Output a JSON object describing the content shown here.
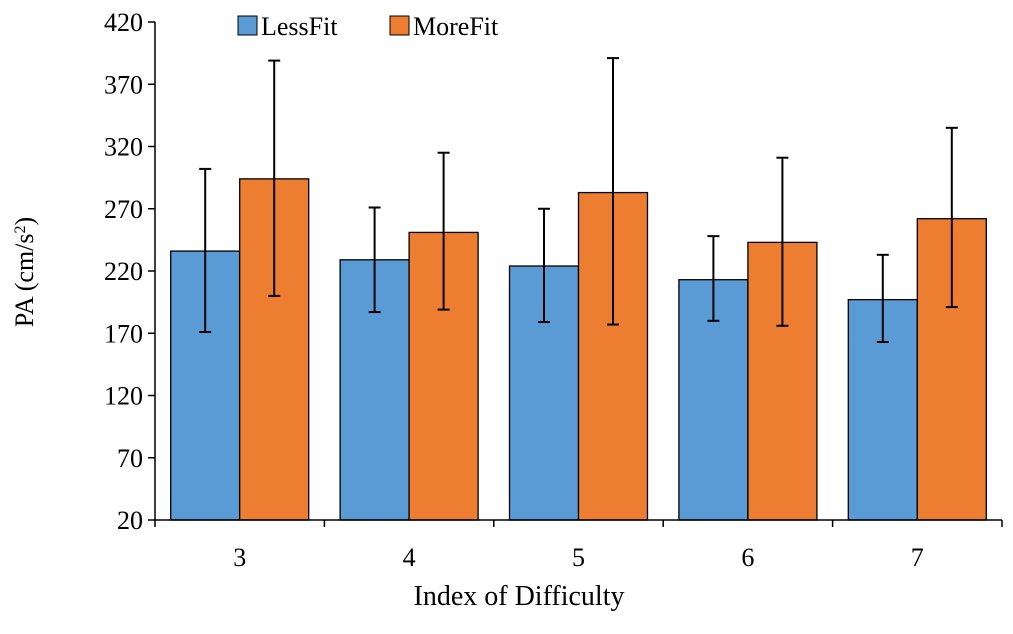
{
  "chart_data": {
    "type": "bar",
    "title": "",
    "xlabel": "Index of Difficulty",
    "ylabel": "PA (cm/s",
    "ylabel_sup": "2",
    "ylabel_close": ")",
    "categories": [
      "3",
      "4",
      "5",
      "6",
      "7"
    ],
    "series": [
      {
        "name": "LessFit",
        "color": "#5b9bd5",
        "values": [
          236,
          229,
          224,
          213,
          197
        ],
        "error_low": [
          171,
          187,
          179,
          180,
          163
        ],
        "error_high": [
          302,
          271,
          270,
          248,
          233
        ]
      },
      {
        "name": "MoreFit",
        "color": "#ed7d31",
        "values": [
          294,
          251,
          283,
          243,
          262
        ],
        "error_low": [
          200,
          189,
          177,
          176,
          191
        ],
        "error_high": [
          389,
          315,
          391,
          311,
          335
        ]
      }
    ],
    "ylim": [
      20,
      420
    ],
    "yticks": [
      "20",
      "70",
      "120",
      "170",
      "220",
      "270",
      "320",
      "370",
      "420"
    ],
    "ytick_values": [
      20,
      70,
      120,
      170,
      220,
      270,
      320,
      370,
      420
    ],
    "legend_position": "top-left",
    "grid": false
  }
}
